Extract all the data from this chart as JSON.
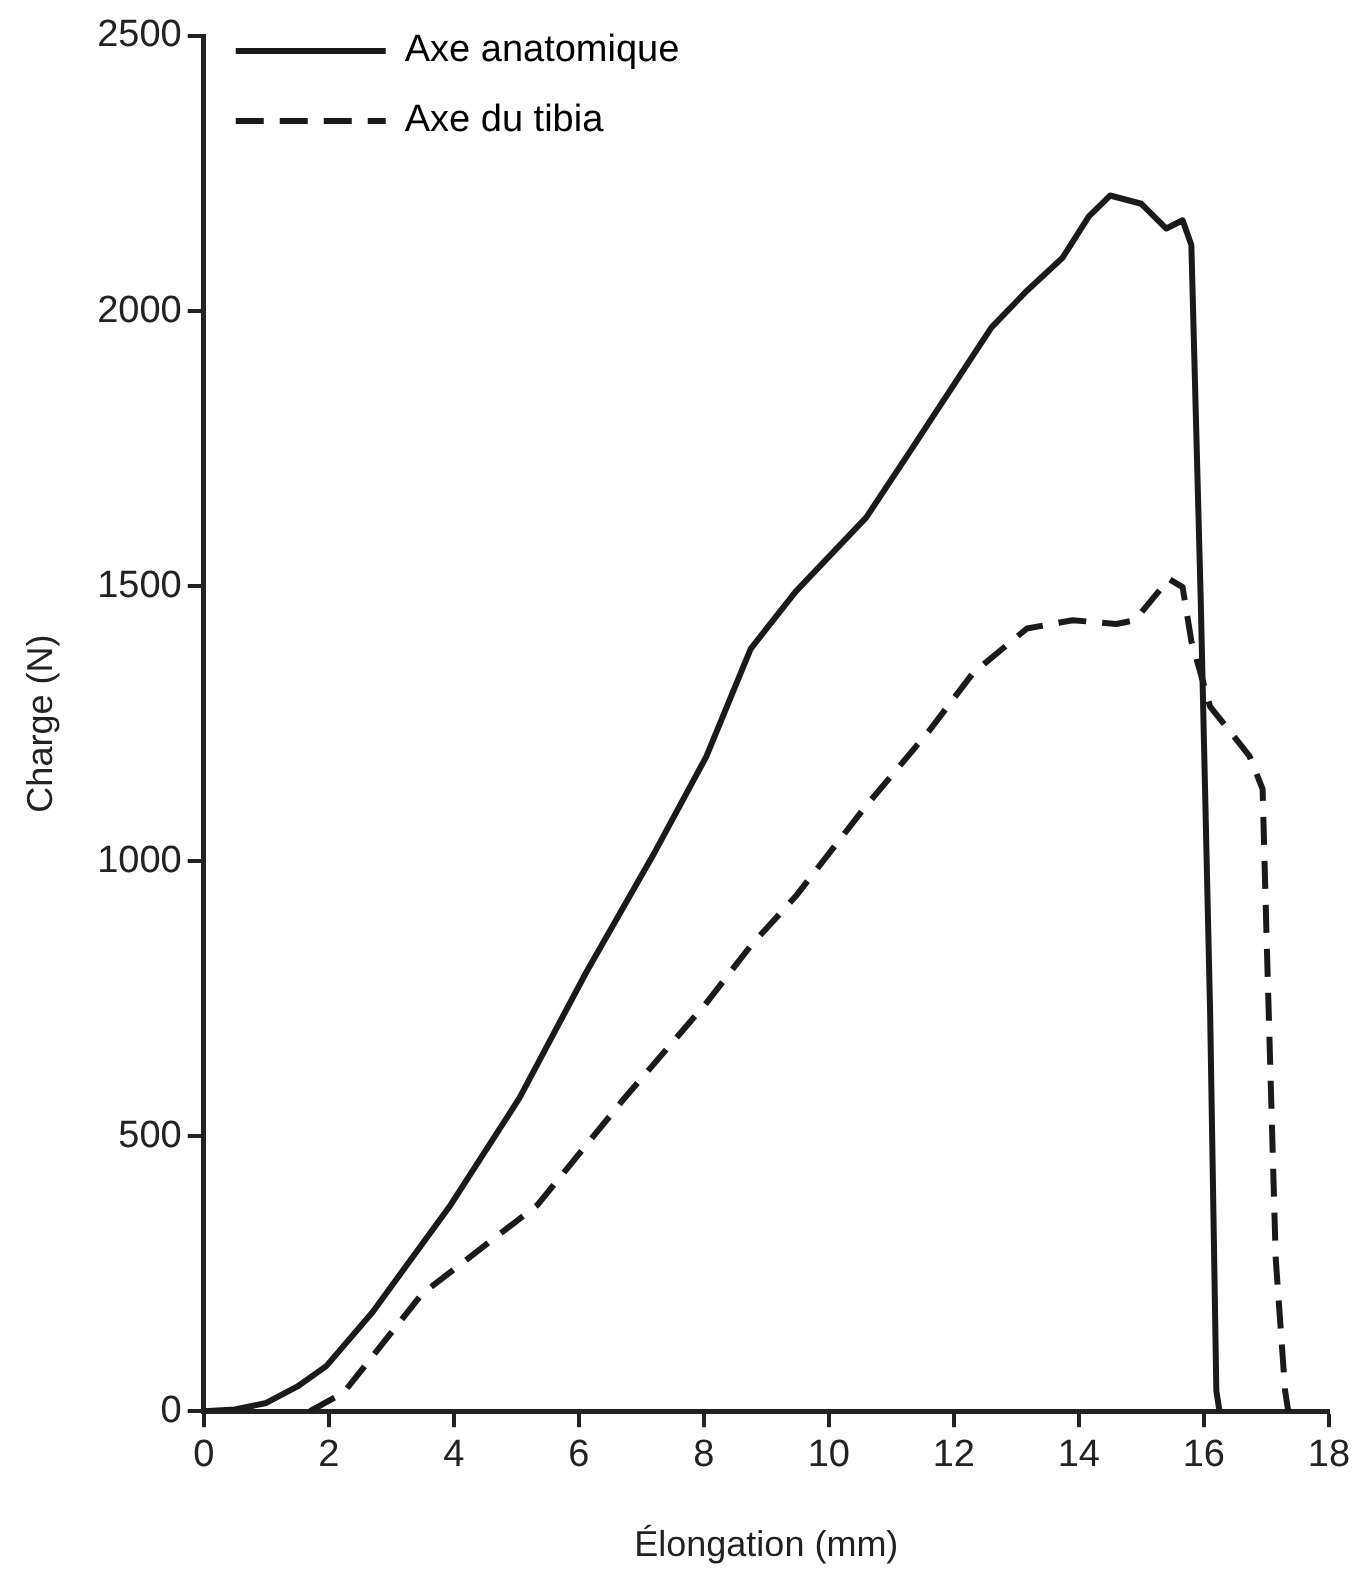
{
  "chart_data": {
    "type": "line",
    "xlabel": "Élongation (mm)",
    "ylabel": "Charge (N)",
    "xlim": [
      0,
      18
    ],
    "xticks": [
      0,
      2,
      4,
      6,
      8,
      10,
      12,
      14,
      16,
      18
    ],
    "ylim": [
      0,
      2500
    ],
    "yticks": [
      0,
      500,
      1000,
      1500,
      2000,
      2500
    ],
    "grid": false,
    "legend": "top left",
    "marker": "none",
    "series": [
      {
        "name": "Axe anatomique",
        "color": "#1a1a1a",
        "line_style": "solid",
        "x": [
          0,
          0.5,
          1,
          1.5,
          1.96,
          2.7,
          3.95,
          5.05,
          6.12,
          7.19,
          8.04,
          8.75,
          9.47,
          10.6,
          11.3,
          12.6,
          13.17,
          13.74,
          14.16,
          14.5,
          15.0,
          15.4,
          15.66,
          15.8,
          15.95,
          16.1,
          16.2,
          16.25
        ],
        "values": [
          0,
          3,
          15,
          45,
          82,
          180,
          375,
          569,
          798,
          1011,
          1190,
          1386,
          1490,
          1625,
          1745,
          1970,
          2037,
          2097,
          2172,
          2210,
          2195,
          2150,
          2165,
          2120,
          1475,
          727,
          37,
          0
        ]
      },
      {
        "name": "Axe du tibia",
        "color": "#1a1a1a",
        "line_style": "dashed",
        "x": [
          1.7,
          2.24,
          3.49,
          5.34,
          6.73,
          8.04,
          8.75,
          9.47,
          10.6,
          11.6,
          12.3,
          13.17,
          13.9,
          14.6,
          14.9,
          15.44,
          15.66,
          15.8,
          16.1,
          16.73,
          16.94,
          17.0,
          17.15,
          17.3,
          17.35
        ],
        "values": [
          0,
          34,
          213,
          375,
          569,
          742,
          846,
          936,
          1101,
          1236,
          1341,
          1423,
          1438,
          1431,
          1438,
          1513,
          1498,
          1400,
          1281,
          1191,
          1131,
          876,
          277,
          37,
          0
        ]
      }
    ]
  }
}
